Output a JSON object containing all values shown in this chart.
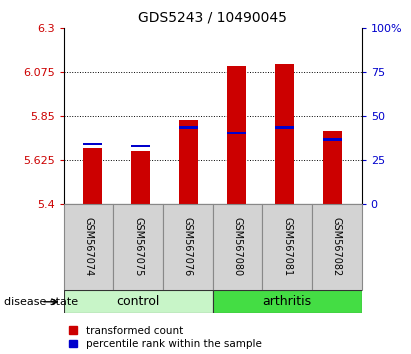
{
  "title": "GDS5243 / 10490045",
  "samples": [
    "GSM567074",
    "GSM567075",
    "GSM567076",
    "GSM567080",
    "GSM567081",
    "GSM567082"
  ],
  "groups": [
    "control",
    "control",
    "control",
    "arthritis",
    "arthritis",
    "arthritis"
  ],
  "red_values": [
    5.685,
    5.672,
    5.83,
    6.105,
    6.115,
    5.775
  ],
  "blue_values": [
    5.7,
    5.69,
    5.785,
    5.755,
    5.785,
    5.72
  ],
  "blue_segment_top": [
    5.71,
    5.7,
    5.8,
    5.77,
    5.8,
    5.735
  ],
  "ymin": 5.4,
  "ymax": 6.3,
  "yticks_left": [
    5.4,
    5.625,
    5.85,
    6.075,
    6.3
  ],
  "yticks_right": [
    0,
    25,
    50,
    75,
    100
  ],
  "bar_width": 0.4,
  "blue_bar_width": 0.4,
  "bar_color_red": "#CC0000",
  "bar_color_blue": "#0000CC",
  "bg_label": "#d3d3d3",
  "bg_control": "#c8f5c8",
  "bg_arthritis": "#44dd44",
  "disease_state_label": "disease state",
  "legend_red": "transformed count",
  "legend_blue": "percentile rank within the sample"
}
